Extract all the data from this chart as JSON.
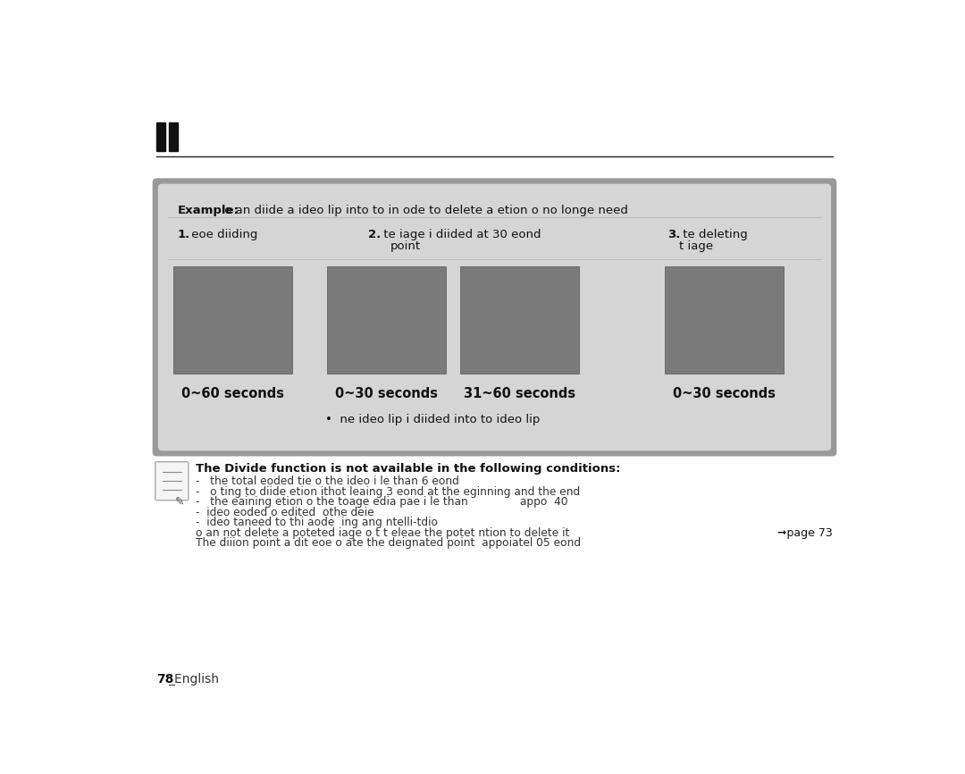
{
  "bg_color": "#ffffff",
  "outer_box_color": "#999999",
  "inner_box_color": "#d5d5d5",
  "video_box_color": "#7a7a7a",
  "example_bold": "Example:",
  "example_text": " o an diide a ideo lip into to in ode to delete a etion o no longe need",
  "step1_bold": "1.",
  "step1_text": " eoe diiding",
  "step2_bold": "2.",
  "step2_line1": " te iage i diided at 30 eond",
  "step2_line2": "point",
  "step3_bold": "3.",
  "step3_line1": " te deleting",
  "step3_line2": "t iage",
  "labels": [
    "0~60 seconds",
    "0~30 seconds",
    "31~60 seconds",
    "0~30 seconds"
  ],
  "bullet_text": "•  ne ideo lip i diided into to ideo lip",
  "note_bold": "The Divide function is not available in the following conditions:",
  "note_lines": [
    "-   the total eoded tie o the ideo i le than 6 eond",
    "-   o ting to diide etion ithot leaing 3 eond at the eginning and the end",
    "-   the eaining etion o the toage edia pae i le than               appo  40",
    "-  ideo eoded o edited  othe deie",
    "-  ideo taneed to thi aode  ing ang ntelli-tdio",
    "o an not delete a poteted iage o t t eleae the potet ntion to delete it",
    "The diiion point a dit eoe o ate the deignated point  appoiatel 05 eond"
  ],
  "page_ref": "➞page 73",
  "footer_bold": "78",
  "footer_text": "_English",
  "header_line_color": "#222222",
  "note_icon_lines": [
    [
      0.18,
      0.12,
      0.82,
      0.12
    ],
    [
      0.18,
      0.35,
      0.82,
      0.35
    ],
    [
      0.18,
      0.58,
      0.82,
      0.58
    ],
    [
      0.18,
      0.8,
      0.82,
      0.8
    ]
  ]
}
